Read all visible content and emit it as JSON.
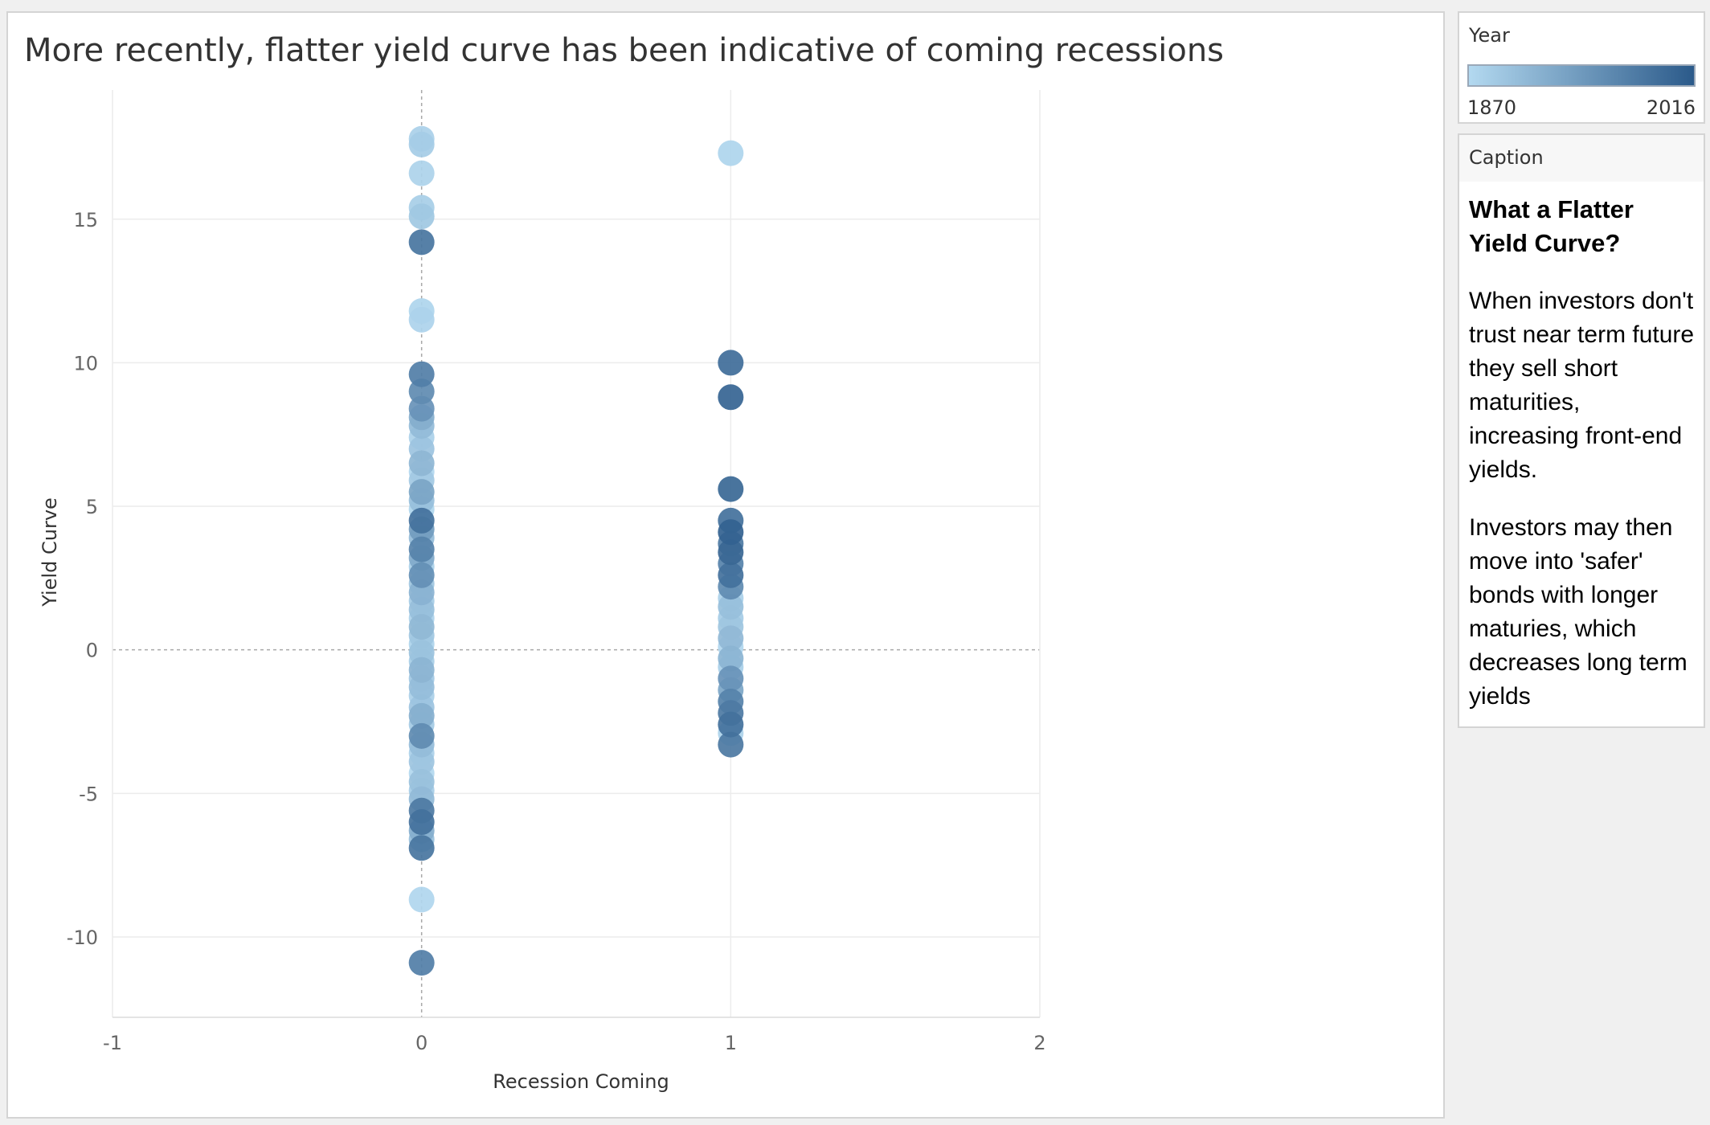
{
  "title": "More recently, flatter yield curve has been indicative of coming recessions",
  "legend": {
    "title": "Year",
    "min_label": "1870",
    "max_label": "2016",
    "color_low": "#b3d9f0",
    "color_high": "#2b5a8a"
  },
  "caption": {
    "label": "Caption",
    "heading": "What a Flatter Yield Curve?",
    "paragraphs": [
      "When investors don't trust near term future they sell short maturities, increasing front-end yields.",
      "Investors may then move into 'safer' bonds with longer maturies, which decreases long term yields"
    ]
  },
  "chart_data": {
    "type": "scatter",
    "title": "More recently, flatter yield curve has been indicative of coming recessions",
    "xlabel": "Recession Coming",
    "ylabel": "Yield Curve",
    "xlim": [
      -1,
      2
    ],
    "ylim": [
      -12.8,
      19.5
    ],
    "xticks": [
      -1,
      0,
      1,
      2
    ],
    "yticks": [
      -10,
      -5,
      0,
      5,
      10,
      15
    ],
    "color_encoding": "Year",
    "year_range": [
      1870,
      2016
    ],
    "points": [
      {
        "x": 0,
        "y": 17.8,
        "year": 1880
      },
      {
        "x": 0,
        "y": 17.6,
        "year": 1885
      },
      {
        "x": 0,
        "y": 16.6,
        "year": 1878
      },
      {
        "x": 0,
        "y": 15.4,
        "year": 1883
      },
      {
        "x": 0,
        "y": 15.1,
        "year": 1890
      },
      {
        "x": 0,
        "y": 14.2,
        "year": 1985
      },
      {
        "x": 0,
        "y": 11.8,
        "year": 1875
      },
      {
        "x": 0,
        "y": 11.5,
        "year": 1877
      },
      {
        "x": 0,
        "y": 9.6,
        "year": 1975
      },
      {
        "x": 0,
        "y": 9.0,
        "year": 1960
      },
      {
        "x": 0,
        "y": 8.4,
        "year": 1950
      },
      {
        "x": 0,
        "y": 8.1,
        "year": 1920
      },
      {
        "x": 0,
        "y": 7.8,
        "year": 1905
      },
      {
        "x": 0,
        "y": 7.4,
        "year": 1880
      },
      {
        "x": 0,
        "y": 7.0,
        "year": 1895
      },
      {
        "x": 0,
        "y": 6.5,
        "year": 1910
      },
      {
        "x": 0,
        "y": 6.2,
        "year": 1872
      },
      {
        "x": 0,
        "y": 5.9,
        "year": 1888
      },
      {
        "x": 0,
        "y": 5.5,
        "year": 1930
      },
      {
        "x": 0,
        "y": 5.2,
        "year": 1900
      },
      {
        "x": 0,
        "y": 4.9,
        "year": 1874
      },
      {
        "x": 0,
        "y": 4.5,
        "year": 1990
      },
      {
        "x": 0,
        "y": 4.2,
        "year": 1940
      },
      {
        "x": 0,
        "y": 3.9,
        "year": 1905
      },
      {
        "x": 0,
        "y": 3.5,
        "year": 1970
      },
      {
        "x": 0,
        "y": 3.2,
        "year": 1925
      },
      {
        "x": 0,
        "y": 2.9,
        "year": 1882
      },
      {
        "x": 0,
        "y": 2.6,
        "year": 1955
      },
      {
        "x": 0,
        "y": 2.3,
        "year": 1893
      },
      {
        "x": 0,
        "y": 2.0,
        "year": 1915
      },
      {
        "x": 0,
        "y": 1.7,
        "year": 1886
      },
      {
        "x": 0,
        "y": 1.4,
        "year": 1900
      },
      {
        "x": 0,
        "y": 1.1,
        "year": 1879
      },
      {
        "x": 0,
        "y": 0.8,
        "year": 1908
      },
      {
        "x": 0,
        "y": 0.5,
        "year": 1891
      },
      {
        "x": 0,
        "y": 0.2,
        "year": 1876
      },
      {
        "x": 0,
        "y": -0.1,
        "year": 1897
      },
      {
        "x": 0,
        "y": -0.4,
        "year": 1884
      },
      {
        "x": 0,
        "y": -0.7,
        "year": 1912
      },
      {
        "x": 0,
        "y": -1.0,
        "year": 1889
      },
      {
        "x": 0,
        "y": -1.3,
        "year": 1902
      },
      {
        "x": 0,
        "y": -1.6,
        "year": 1881
      },
      {
        "x": 0,
        "y": -2.0,
        "year": 1895
      },
      {
        "x": 0,
        "y": -2.3,
        "year": 1918
      },
      {
        "x": 0,
        "y": -2.6,
        "year": 1887
      },
      {
        "x": 0,
        "y": -3.0,
        "year": 1960
      },
      {
        "x": 0,
        "y": -3.3,
        "year": 1903
      },
      {
        "x": 0,
        "y": -3.6,
        "year": 1880
      },
      {
        "x": 0,
        "y": -3.9,
        "year": 1894
      },
      {
        "x": 0,
        "y": -4.3,
        "year": 1871
      },
      {
        "x": 0,
        "y": -4.6,
        "year": 1898
      },
      {
        "x": 0,
        "y": -4.9,
        "year": 1885
      },
      {
        "x": 0,
        "y": -5.2,
        "year": 1906
      },
      {
        "x": 0,
        "y": -5.6,
        "year": 1980
      },
      {
        "x": 0,
        "y": -6.0,
        "year": 1990
      },
      {
        "x": 0,
        "y": -6.3,
        "year": 1920
      },
      {
        "x": 0,
        "y": -6.6,
        "year": 1900
      },
      {
        "x": 0,
        "y": -6.9,
        "year": 1985
      },
      {
        "x": 0,
        "y": -8.7,
        "year": 1873
      },
      {
        "x": 0,
        "y": -10.9,
        "year": 1975
      },
      {
        "x": 1,
        "y": 17.3,
        "year": 1875
      },
      {
        "x": 1,
        "y": 10.0,
        "year": 1995
      },
      {
        "x": 1,
        "y": 8.8,
        "year": 2005
      },
      {
        "x": 1,
        "y": 5.6,
        "year": 2000
      },
      {
        "x": 1,
        "y": 4.5,
        "year": 1990
      },
      {
        "x": 1,
        "y": 4.1,
        "year": 2007
      },
      {
        "x": 1,
        "y": 3.7,
        "year": 1980
      },
      {
        "x": 1,
        "y": 3.4,
        "year": 2001
      },
      {
        "x": 1,
        "y": 3.0,
        "year": 1970
      },
      {
        "x": 1,
        "y": 2.6,
        "year": 1990
      },
      {
        "x": 1,
        "y": 2.2,
        "year": 1960
      },
      {
        "x": 1,
        "y": 1.8,
        "year": 1880
      },
      {
        "x": 1,
        "y": 1.5,
        "year": 1900
      },
      {
        "x": 1,
        "y": 1.1,
        "year": 1885
      },
      {
        "x": 1,
        "y": 0.8,
        "year": 1893
      },
      {
        "x": 1,
        "y": 0.4,
        "year": 1907
      },
      {
        "x": 1,
        "y": 0.1,
        "year": 1873
      },
      {
        "x": 1,
        "y": -0.3,
        "year": 1913
      },
      {
        "x": 1,
        "y": -0.6,
        "year": 1882
      },
      {
        "x": 1,
        "y": -1.0,
        "year": 1950
      },
      {
        "x": 1,
        "y": -1.4,
        "year": 1929
      },
      {
        "x": 1,
        "y": -1.8,
        "year": 1970
      },
      {
        "x": 1,
        "y": -2.2,
        "year": 1980
      },
      {
        "x": 1,
        "y": -2.6,
        "year": 1990
      },
      {
        "x": 1,
        "y": -2.9,
        "year": 1878
      },
      {
        "x": 1,
        "y": -3.3,
        "year": 1981
      }
    ],
    "grid": true
  }
}
